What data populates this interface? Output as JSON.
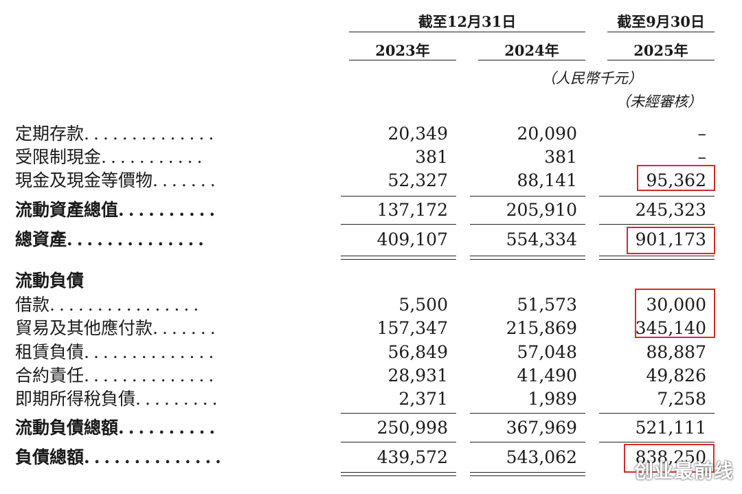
{
  "header": {
    "group_dec": "截至12月31日",
    "group_sep": "截至9月30日",
    "years": [
      "2023年",
      "2024年",
      "2025年"
    ],
    "unit": "（人民幣千元）",
    "unaudited": "（未經審核）"
  },
  "rows": [
    {
      "label": "定期存款",
      "dots": "..............",
      "values": [
        "20,349",
        "20,090",
        "–"
      ],
      "bold": false
    },
    {
      "label": "受限制現金",
      "dots": "...........",
      "values": [
        "381",
        "381",
        "–"
      ],
      "bold": false
    },
    {
      "label": "現金及現金等價物",
      "dots": ".......",
      "values": [
        "52,327",
        "88,141",
        "95,362"
      ],
      "bold": false
    },
    {
      "label": "流動資產總值",
      "dots": "..........",
      "values": [
        "137,172",
        "205,910",
        "245,323"
      ],
      "bold": true
    },
    {
      "label": "總資產",
      "dots": "..............",
      "values": [
        "409,107",
        "554,334",
        "901,173"
      ],
      "bold": true
    },
    {
      "label": "流動負債",
      "dots": "",
      "values": [
        "",
        "",
        ""
      ],
      "bold": true
    },
    {
      "label": "借款",
      "dots": "................",
      "values": [
        "5,500",
        "51,573",
        "30,000"
      ],
      "bold": false
    },
    {
      "label": "貿易及其他應付款",
      "dots": ".......",
      "values": [
        "157,347",
        "215,869",
        "345,140"
      ],
      "bold": false
    },
    {
      "label": "租賃負債",
      "dots": "..............",
      "values": [
        "56,849",
        "57,048",
        "88,887"
      ],
      "bold": false
    },
    {
      "label": "合約責任",
      "dots": "..............",
      "values": [
        "28,931",
        "41,490",
        "49,826"
      ],
      "bold": false
    },
    {
      "label": "即期所得稅負債",
      "dots": ".........",
      "values": [
        "2,371",
        "1,989",
        "7,258"
      ],
      "bold": false
    },
    {
      "label": "流動負債總額",
      "dots": "..........",
      "values": [
        "250,998",
        "367,969",
        "521,111"
      ],
      "bold": true
    },
    {
      "label": "負債總額",
      "dots": "..............",
      "values": [
        "439,572",
        "543,062",
        "838,250"
      ],
      "bold": true
    }
  ],
  "watermark": "创业最前线",
  "highlight_color": "#d42a2a"
}
